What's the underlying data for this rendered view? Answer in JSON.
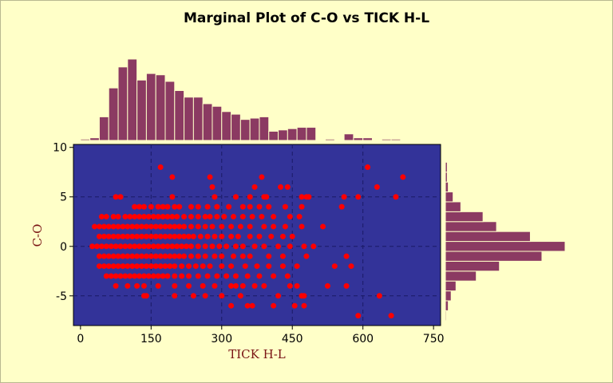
{
  "chart_data": {
    "type": "scatter",
    "title": "Marginal Plot of C-O vs TICK H-L",
    "xlabel": "TICK H-L",
    "ylabel": "C-O",
    "xlim": [
      -15,
      765
    ],
    "ylim": [
      -8,
      10.3
    ],
    "xticks": [
      0,
      150,
      300,
      450,
      600,
      750
    ],
    "yticks": [
      -5,
      0,
      5,
      10
    ],
    "grid": true,
    "colors": {
      "background": "#ffffc8",
      "plot_area": "#333399",
      "points": "#ff0000",
      "histogram_bars": "#8b3a62",
      "grid": "#1a1a66"
    },
    "scatter_points": [
      [
        170,
        8
      ],
      [
        610,
        8
      ],
      [
        195,
        7
      ],
      [
        275,
        7
      ],
      [
        385,
        7
      ],
      [
        685,
        7
      ],
      [
        280,
        6
      ],
      [
        370,
        6
      ],
      [
        425,
        6
      ],
      [
        440,
        6
      ],
      [
        630,
        6
      ],
      [
        75,
        5
      ],
      [
        85,
        5
      ],
      [
        195,
        5
      ],
      [
        285,
        5
      ],
      [
        330,
        5
      ],
      [
        360,
        5
      ],
      [
        390,
        5
      ],
      [
        395,
        5
      ],
      [
        470,
        5
      ],
      [
        480,
        5
      ],
      [
        485,
        5
      ],
      [
        560,
        5
      ],
      [
        590,
        5
      ],
      [
        670,
        5
      ],
      [
        115,
        4
      ],
      [
        125,
        4
      ],
      [
        135,
        4
      ],
      [
        150,
        4
      ],
      [
        165,
        4
      ],
      [
        175,
        4
      ],
      [
        185,
        4
      ],
      [
        200,
        4
      ],
      [
        210,
        4
      ],
      [
        235,
        4
      ],
      [
        250,
        4
      ],
      [
        270,
        4
      ],
      [
        290,
        4
      ],
      [
        315,
        4
      ],
      [
        345,
        4
      ],
      [
        360,
        4
      ],
      [
        380,
        4
      ],
      [
        400,
        4
      ],
      [
        435,
        4
      ],
      [
        470,
        4
      ],
      [
        555,
        4
      ],
      [
        45,
        3
      ],
      [
        55,
        3
      ],
      [
        70,
        3
      ],
      [
        80,
        3
      ],
      [
        95,
        3
      ],
      [
        105,
        3
      ],
      [
        115,
        3
      ],
      [
        125,
        3
      ],
      [
        135,
        3
      ],
      [
        145,
        3
      ],
      [
        155,
        3
      ],
      [
        165,
        3
      ],
      [
        175,
        3
      ],
      [
        185,
        3
      ],
      [
        195,
        3
      ],
      [
        205,
        3
      ],
      [
        220,
        3
      ],
      [
        235,
        3
      ],
      [
        250,
        3
      ],
      [
        265,
        3
      ],
      [
        275,
        3
      ],
      [
        290,
        3
      ],
      [
        305,
        3
      ],
      [
        325,
        3
      ],
      [
        345,
        3
      ],
      [
        365,
        3
      ],
      [
        385,
        3
      ],
      [
        410,
        3
      ],
      [
        445,
        3
      ],
      [
        465,
        3
      ],
      [
        30,
        2
      ],
      [
        40,
        2
      ],
      [
        50,
        2
      ],
      [
        60,
        2
      ],
      [
        70,
        2
      ],
      [
        80,
        2
      ],
      [
        90,
        2
      ],
      [
        100,
        2
      ],
      [
        110,
        2
      ],
      [
        120,
        2
      ],
      [
        130,
        2
      ],
      [
        140,
        2
      ],
      [
        150,
        2
      ],
      [
        160,
        2
      ],
      [
        170,
        2
      ],
      [
        180,
        2
      ],
      [
        190,
        2
      ],
      [
        200,
        2
      ],
      [
        210,
        2
      ],
      [
        220,
        2
      ],
      [
        235,
        2
      ],
      [
        250,
        2
      ],
      [
        265,
        2
      ],
      [
        280,
        2
      ],
      [
        300,
        2
      ],
      [
        320,
        2
      ],
      [
        340,
        2
      ],
      [
        360,
        2
      ],
      [
        390,
        2
      ],
      [
        410,
        2
      ],
      [
        435,
        2
      ],
      [
        470,
        2
      ],
      [
        515,
        2
      ],
      [
        40,
        1
      ],
      [
        50,
        1
      ],
      [
        60,
        1
      ],
      [
        70,
        1
      ],
      [
        80,
        1
      ],
      [
        90,
        1
      ],
      [
        100,
        1
      ],
      [
        110,
        1
      ],
      [
        120,
        1
      ],
      [
        130,
        1
      ],
      [
        140,
        1
      ],
      [
        150,
        1
      ],
      [
        160,
        1
      ],
      [
        170,
        1
      ],
      [
        180,
        1
      ],
      [
        190,
        1
      ],
      [
        200,
        1
      ],
      [
        210,
        1
      ],
      [
        220,
        1
      ],
      [
        230,
        1
      ],
      [
        240,
        1
      ],
      [
        255,
        1
      ],
      [
        270,
        1
      ],
      [
        285,
        1
      ],
      [
        300,
        1
      ],
      [
        320,
        1
      ],
      [
        335,
        1
      ],
      [
        360,
        1
      ],
      [
        380,
        1
      ],
      [
        405,
        1
      ],
      [
        430,
        1
      ],
      [
        450,
        1
      ],
      [
        25,
        0
      ],
      [
        35,
        0
      ],
      [
        45,
        0
      ],
      [
        55,
        0
      ],
      [
        65,
        0
      ],
      [
        75,
        0
      ],
      [
        85,
        0
      ],
      [
        95,
        0
      ],
      [
        105,
        0
      ],
      [
        115,
        0
      ],
      [
        125,
        0
      ],
      [
        135,
        0
      ],
      [
        145,
        0
      ],
      [
        155,
        0
      ],
      [
        165,
        0
      ],
      [
        175,
        0
      ],
      [
        185,
        0
      ],
      [
        195,
        0
      ],
      [
        205,
        0
      ],
      [
        215,
        0
      ],
      [
        225,
        0
      ],
      [
        235,
        0
      ],
      [
        250,
        0
      ],
      [
        265,
        0
      ],
      [
        280,
        0
      ],
      [
        295,
        0
      ],
      [
        310,
        0
      ],
      [
        330,
        0
      ],
      [
        345,
        0
      ],
      [
        370,
        0
      ],
      [
        390,
        0
      ],
      [
        420,
        0
      ],
      [
        445,
        0
      ],
      [
        475,
        0
      ],
      [
        495,
        0
      ],
      [
        40,
        -1
      ],
      [
        50,
        -1
      ],
      [
        60,
        -1
      ],
      [
        70,
        -1
      ],
      [
        80,
        -1
      ],
      [
        90,
        -1
      ],
      [
        100,
        -1
      ],
      [
        110,
        -1
      ],
      [
        120,
        -1
      ],
      [
        130,
        -1
      ],
      [
        140,
        -1
      ],
      [
        150,
        -1
      ],
      [
        160,
        -1
      ],
      [
        170,
        -1
      ],
      [
        180,
        -1
      ],
      [
        190,
        -1
      ],
      [
        200,
        -1
      ],
      [
        210,
        -1
      ],
      [
        220,
        -1
      ],
      [
        235,
        -1
      ],
      [
        250,
        -1
      ],
      [
        265,
        -1
      ],
      [
        285,
        -1
      ],
      [
        300,
        -1
      ],
      [
        325,
        -1
      ],
      [
        345,
        -1
      ],
      [
        360,
        -1
      ],
      [
        400,
        -1
      ],
      [
        430,
        -1
      ],
      [
        480,
        -1
      ],
      [
        565,
        -1
      ],
      [
        40,
        -2
      ],
      [
        50,
        -2
      ],
      [
        60,
        -2
      ],
      [
        70,
        -2
      ],
      [
        80,
        -2
      ],
      [
        90,
        -2
      ],
      [
        100,
        -2
      ],
      [
        110,
        -2
      ],
      [
        120,
        -2
      ],
      [
        130,
        -2
      ],
      [
        140,
        -2
      ],
      [
        150,
        -2
      ],
      [
        160,
        -2
      ],
      [
        170,
        -2
      ],
      [
        180,
        -2
      ],
      [
        190,
        -2
      ],
      [
        200,
        -2
      ],
      [
        215,
        -2
      ],
      [
        230,
        -2
      ],
      [
        245,
        -2
      ],
      [
        260,
        -2
      ],
      [
        275,
        -2
      ],
      [
        300,
        -2
      ],
      [
        320,
        -2
      ],
      [
        350,
        -2
      ],
      [
        375,
        -2
      ],
      [
        400,
        -2
      ],
      [
        430,
        -2
      ],
      [
        460,
        -2
      ],
      [
        540,
        -2
      ],
      [
        575,
        -2
      ],
      [
        55,
        -3
      ],
      [
        65,
        -3
      ],
      [
        75,
        -3
      ],
      [
        85,
        -3
      ],
      [
        95,
        -3
      ],
      [
        105,
        -3
      ],
      [
        115,
        -3
      ],
      [
        125,
        -3
      ],
      [
        135,
        -3
      ],
      [
        145,
        -3
      ],
      [
        155,
        -3
      ],
      [
        165,
        -3
      ],
      [
        175,
        -3
      ],
      [
        185,
        -3
      ],
      [
        200,
        -3
      ],
      [
        215,
        -3
      ],
      [
        230,
        -3
      ],
      [
        250,
        -3
      ],
      [
        270,
        -3
      ],
      [
        290,
        -3
      ],
      [
        310,
        -3
      ],
      [
        330,
        -3
      ],
      [
        355,
        -3
      ],
      [
        380,
        -3
      ],
      [
        410,
        -3
      ],
      [
        440,
        -3
      ],
      [
        75,
        -4
      ],
      [
        100,
        -4
      ],
      [
        120,
        -4
      ],
      [
        135,
        -4
      ],
      [
        165,
        -4
      ],
      [
        200,
        -4
      ],
      [
        230,
        -4
      ],
      [
        260,
        -4
      ],
      [
        285,
        -4
      ],
      [
        320,
        -4
      ],
      [
        330,
        -4
      ],
      [
        345,
        -4
      ],
      [
        370,
        -4
      ],
      [
        390,
        -4
      ],
      [
        445,
        -4
      ],
      [
        460,
        -4
      ],
      [
        525,
        -4
      ],
      [
        565,
        -4
      ],
      [
        135,
        -5
      ],
      [
        140,
        -5
      ],
      [
        200,
        -5
      ],
      [
        240,
        -5
      ],
      [
        265,
        -5
      ],
      [
        300,
        -5
      ],
      [
        340,
        -5
      ],
      [
        420,
        -5
      ],
      [
        470,
        -5
      ],
      [
        475,
        -5
      ],
      [
        635,
        -5
      ],
      [
        320,
        -6
      ],
      [
        355,
        -6
      ],
      [
        365,
        -6
      ],
      [
        410,
        -6
      ],
      [
        455,
        -6
      ],
      [
        475,
        -6
      ],
      [
        590,
        -7
      ],
      [
        660,
        -7
      ]
    ],
    "x_histogram": {
      "bin_width": 20,
      "bin_starts": [
        0,
        20,
        40,
        60,
        80,
        100,
        120,
        140,
        160,
        180,
        200,
        220,
        240,
        260,
        280,
        300,
        320,
        340,
        360,
        380,
        400,
        420,
        440,
        460,
        480,
        500,
        520,
        540,
        560,
        580,
        600,
        620,
        640,
        660,
        680
      ],
      "counts": [
        1,
        2,
        18,
        40,
        56,
        62,
        46,
        51,
        50,
        45,
        38,
        33,
        33,
        28,
        26,
        22,
        20,
        16,
        17,
        18,
        7,
        8,
        9,
        10,
        10,
        0,
        1,
        0,
        5,
        2,
        2,
        0,
        1,
        1,
        0
      ]
    },
    "y_histogram": {
      "bins": [
        -7,
        -6,
        -5,
        -4,
        -3,
        -2,
        -1,
        0,
        1,
        2,
        3,
        4,
        5,
        6,
        7,
        8
      ],
      "counts": [
        1,
        3,
        6,
        11,
        32,
        56,
        100,
        124,
        88,
        53,
        39,
        16,
        8,
        3,
        2,
        2
      ]
    }
  }
}
